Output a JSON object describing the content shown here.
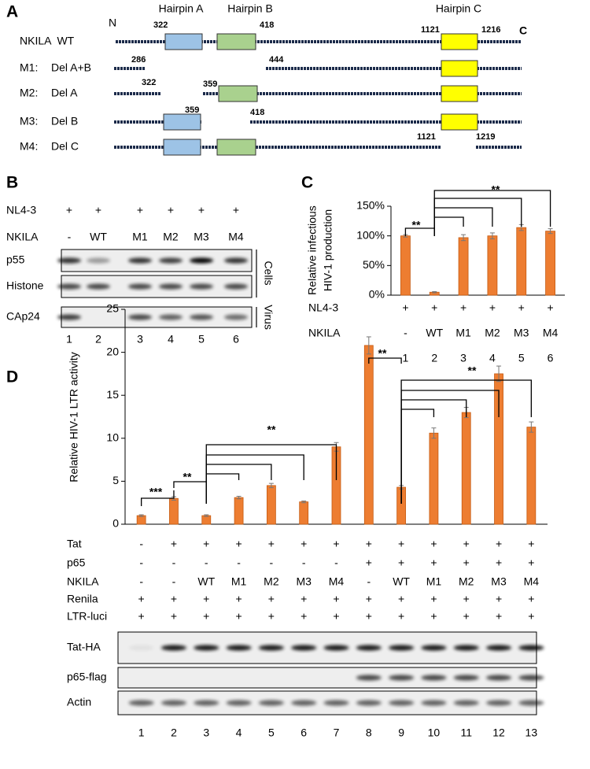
{
  "panel_a": {
    "label": "A",
    "n_terminus": "N",
    "c_terminus": "C",
    "hairpins": [
      "Hairpin A",
      "Hairpin B",
      "Hairpin C"
    ],
    "constructs": [
      {
        "name": "NKILA  WT",
        "positions": [
          322,
          418,
          1121,
          1216
        ]
      },
      {
        "name": "M1:",
        "deletion": "Del A+B",
        "positions": [
          286,
          444
        ]
      },
      {
        "name": "M2:",
        "deletion": "Del A",
        "positions": [
          322,
          359
        ]
      },
      {
        "name": "M3:",
        "deletion": "Del B",
        "positions": [
          359,
          418
        ]
      },
      {
        "name": "M4:",
        "deletion": "Del C",
        "positions": [
          1121,
          1219
        ]
      }
    ]
  },
  "panel_b": {
    "label": "B",
    "conditions": [
      {
        "name": "NL4-3",
        "values": [
          "+",
          "+",
          "+",
          "+",
          "+",
          "+"
        ]
      },
      {
        "name": "NKILA",
        "values": [
          "-",
          "WT",
          "M1",
          "M2",
          "M3",
          "M4"
        ]
      }
    ],
    "blots": [
      "p55",
      "Histone",
      "CAp24"
    ],
    "groups": [
      "Cells",
      "Virus"
    ],
    "lanes": [
      "1",
      "2",
      "3",
      "4",
      "5",
      "6"
    ]
  },
  "chart_data": [
    {
      "type": "bar",
      "title": "C",
      "ylabel": [
        "Relative infectious",
        "HIV-1 production"
      ],
      "categories": [
        "1",
        "2",
        "3",
        "4",
        "5",
        "6"
      ],
      "values": [
        100,
        5,
        97,
        100,
        114,
        108
      ],
      "errors": [
        2,
        1,
        5,
        5,
        5,
        4
      ],
      "color": "#ed7d31",
      "ylim": [
        0,
        150
      ],
      "yticks": [
        {
          "value": 0,
          "label": "0%"
        },
        {
          "value": 50,
          "label": "50%"
        },
        {
          "value": 100,
          "label": "100%"
        },
        {
          "value": 150,
          "label": "150%"
        }
      ],
      "conditions": [
        {
          "name": "NL4-3",
          "values": [
            "+",
            "+",
            "+",
            "+",
            "+",
            "+"
          ]
        },
        {
          "name": "NKILA",
          "values": [
            "-",
            "WT",
            "M1",
            "M2",
            "M3",
            "M4"
          ]
        }
      ],
      "annotations": [
        "**",
        "**"
      ]
    },
    {
      "type": "bar",
      "title": "D",
      "ylabel": [
        "Relative HIV-1 LTR activity"
      ],
      "categories": [
        "1",
        "2",
        "3",
        "4",
        "5",
        "6",
        "7",
        "8",
        "9",
        "10",
        "11",
        "12",
        "13"
      ],
      "values": [
        1,
        3,
        1,
        3.1,
        4.5,
        2.6,
        9,
        20.8,
        4.3,
        10.6,
        13,
        17.5,
        11.3
      ],
      "errors": [
        0.1,
        0.2,
        0.1,
        0.15,
        0.25,
        0.1,
        0.5,
        1,
        0.2,
        0.6,
        0.6,
        0.9,
        0.6
      ],
      "color": "#ed7d31",
      "ylim": [
        0,
        25
      ],
      "yticks": [
        0,
        5,
        10,
        15,
        20,
        25
      ],
      "conditions": [
        {
          "name": "Tat",
          "values": [
            "-",
            "+",
            "+",
            "+",
            "+",
            "+",
            "+",
            "+",
            "+",
            "+",
            "+",
            "+",
            "+"
          ]
        },
        {
          "name": "p65",
          "values": [
            "-",
            "-",
            "-",
            "-",
            "-",
            "-",
            "-",
            "+",
            "+",
            "+",
            "+",
            "+",
            "+"
          ]
        },
        {
          "name": "NKILA",
          "values": [
            "-",
            "-",
            "WT",
            "M1",
            "M2",
            "M3",
            "M4",
            "-",
            "WT",
            "M1",
            "M2",
            "M3",
            "M4"
          ]
        },
        {
          "name": "Renila",
          "values": [
            "+",
            "+",
            "+",
            "+",
            "+",
            "+",
            "+",
            "+",
            "+",
            "+",
            "+",
            "+",
            "+"
          ]
        },
        {
          "name": "LTR-luci",
          "values": [
            "+",
            "+",
            "+",
            "+",
            "+",
            "+",
            "+",
            "+",
            "+",
            "+",
            "+",
            "+",
            "+"
          ]
        }
      ],
      "blots": [
        "Tat-HA",
        "p65-flag",
        "Actin"
      ],
      "annotations": [
        "***",
        "**",
        "**",
        "**",
        "**"
      ]
    }
  ]
}
